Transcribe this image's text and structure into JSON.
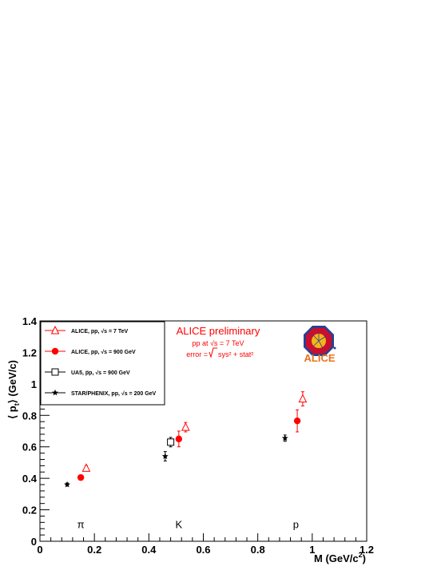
{
  "chart_data": {
    "type": "scatter",
    "title": "",
    "xlabel": "M (GeV/c",
    "xlabel_sup": "2",
    "xlabel_close": ")",
    "ylabel_open": "⟨ p",
    "ylabel_sub": "t",
    "ylabel_close": "⟩ (GeV/c)",
    "xlim": [
      0,
      1.2
    ],
    "ylim": [
      0,
      1.4
    ],
    "xticks": [
      0,
      0.2,
      0.4,
      0.6,
      0.8,
      1,
      1.2
    ],
    "xtick_labels": [
      "0",
      "0.2",
      "0.4",
      "0.6",
      "0.8",
      "1",
      "1.2"
    ],
    "yticks": [
      0,
      0.2,
      0.4,
      0.6,
      0.8,
      1,
      1.2,
      1.4
    ],
    "ytick_labels": [
      "0",
      "0.2",
      "0.4",
      "0.6",
      "0.8",
      "1",
      "1.2",
      "1.4"
    ],
    "grid": false,
    "legend_position": "top-left",
    "series": [
      {
        "name": "ALICE, pp, √s = 7 TeV",
        "marker": "open-triangle",
        "color": "#ff0000",
        "points": [
          {
            "x": 0.17,
            "y": 0.465,
            "err": 0.015
          },
          {
            "x": 0.535,
            "y": 0.725,
            "err": 0.03
          },
          {
            "x": 0.965,
            "y": 0.905,
            "err": 0.045
          }
        ]
      },
      {
        "name": "ALICE, pp, √s = 900 GeV",
        "marker": "filled-circle",
        "color": "#ff0000",
        "points": [
          {
            "x": 0.15,
            "y": 0.405,
            "err": 0.012
          },
          {
            "x": 0.51,
            "y": 0.65,
            "err": 0.05
          },
          {
            "x": 0.945,
            "y": 0.765,
            "err": 0.07
          }
        ]
      },
      {
        "name": "UA5, p̅p, √s = 900 GeV",
        "marker": "open-square",
        "color": "#000000",
        "points": [
          {
            "x": 0.48,
            "y": 0.63,
            "err": 0.03
          }
        ]
      },
      {
        "name": "STAR/PHENIX, pp, √s = 200 GeV",
        "marker": "star",
        "color": "#000000",
        "points": [
          {
            "x": 0.1,
            "y": 0.36,
            "err": 0.01
          },
          {
            "x": 0.46,
            "y": 0.54,
            "err": 0.03
          },
          {
            "x": 0.9,
            "y": 0.655,
            "err": 0.02
          }
        ]
      }
    ],
    "particle_labels": [
      {
        "text": "π",
        "x": 0.15,
        "y": 0.11
      },
      {
        "text": "K",
        "x": 0.51,
        "y": 0.11
      },
      {
        "text": "p",
        "x": 0.94,
        "y": 0.11
      }
    ],
    "annotations": {
      "preliminary": "ALICE preliminary",
      "energy": "pp at √s = 7 TeV",
      "error_lhs": "error = ",
      "error_rhs": "sys² + stat²",
      "logo_text": "ALICE"
    },
    "colors": {
      "alice_red": "#ff0000",
      "logo_orange": "#e8731a",
      "logo_blue": "#2e3f8f"
    }
  }
}
